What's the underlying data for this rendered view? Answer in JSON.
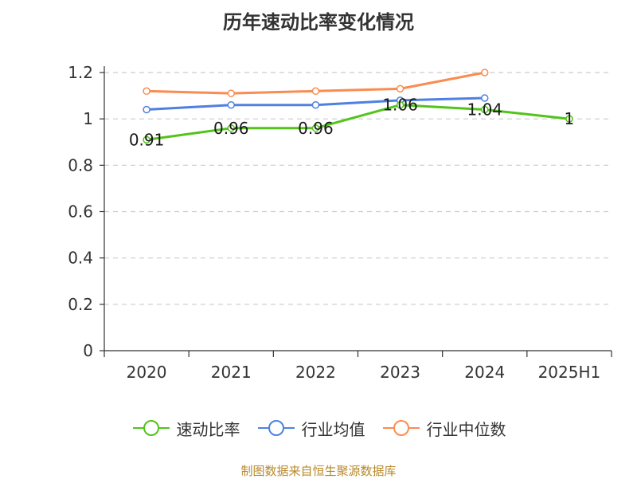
{
  "chart_data": {
    "type": "line",
    "title": "历年速动比率变化情况",
    "categories": [
      "2020",
      "2021",
      "2022",
      "2023",
      "2024",
      "2025H1"
    ],
    "ylim": [
      0,
      1.2
    ],
    "yticks": [
      "0",
      "0.2",
      "0.4",
      "0.6",
      "0.8",
      "1",
      "1.2"
    ],
    "ytick_values": [
      0,
      0.2,
      0.4,
      0.6,
      0.8,
      1,
      1.2
    ],
    "grid": true,
    "legend_position": "bottom",
    "series": [
      {
        "name": "速动比率",
        "color": "#52c41a",
        "values": [
          0.91,
          0.96,
          0.96,
          1.06,
          1.04,
          1
        ],
        "labels": [
          "0.91",
          "0.96",
          "0.96",
          "1.06",
          "1.04",
          "1"
        ]
      },
      {
        "name": "行业均值",
        "color": "#4f80e1",
        "values": [
          1.04,
          1.06,
          1.06,
          1.08,
          1.09,
          null
        ]
      },
      {
        "name": "行业中位数",
        "color": "#fa8c51",
        "values": [
          1.12,
          1.11,
          1.12,
          1.13,
          1.2,
          null
        ]
      }
    ]
  },
  "source_note": "制图数据来自恒生聚源数据库"
}
